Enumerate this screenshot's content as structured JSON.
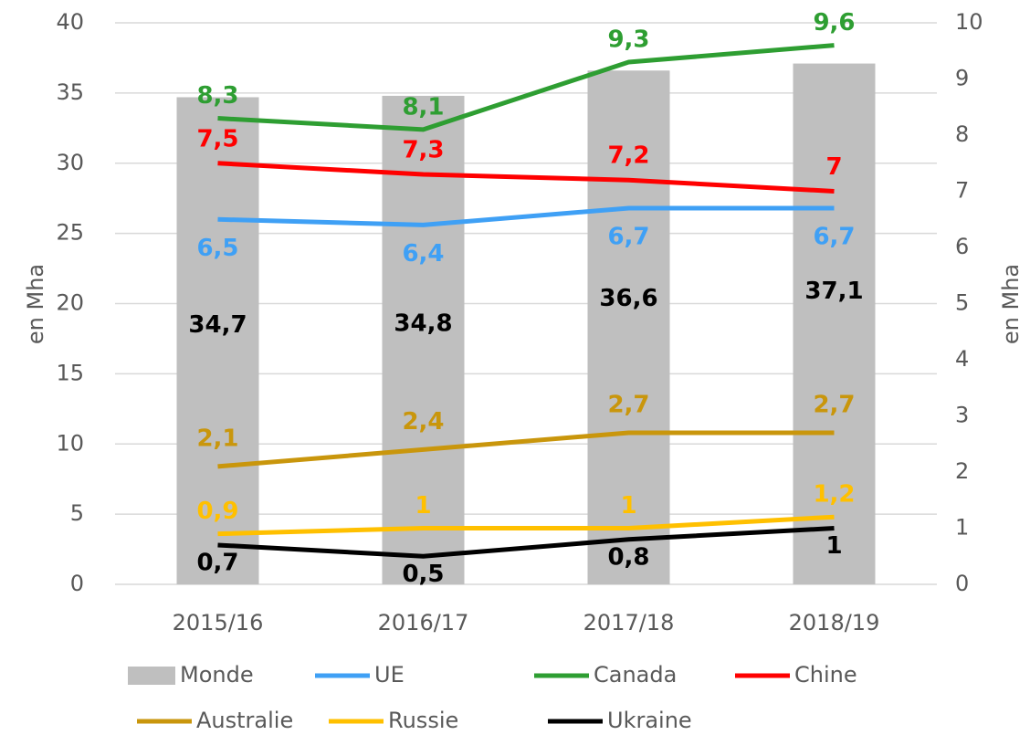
{
  "chart_data": {
    "type": "bar",
    "categories": [
      "2015/16",
      "2016/17",
      "2017/18",
      "2018/19"
    ],
    "y_label": "en Mha",
    "y2_label": "en Mha",
    "ylim": [
      0,
      40
    ],
    "yticks": [
      0,
      5,
      10,
      15,
      20,
      25,
      30,
      35,
      40
    ],
    "y2lim": [
      0,
      10
    ],
    "y2ticks": [
      0,
      1,
      2,
      3,
      4,
      5,
      6,
      7,
      8,
      9,
      10
    ],
    "grid": true,
    "legend": "bottom",
    "series": [
      {
        "name": "Monde",
        "type": "bar",
        "color": "#bfbfbf",
        "values": [
          34.7,
          34.8,
          36.6,
          37.1
        ],
        "value_labels": [
          "34,7",
          "34,8",
          "36,6",
          "37,1"
        ]
      },
      {
        "name": "UE",
        "type": "line",
        "axis": "y2",
        "color": "#3fa0f5",
        "values": [
          6.5,
          6.4,
          6.7,
          6.7
        ],
        "value_labels": [
          "6,5",
          "6,4",
          "6,7",
          "6,7"
        ]
      },
      {
        "name": "Canada",
        "type": "line",
        "axis": "y2",
        "color": "#2e9e32",
        "values": [
          8.3,
          8.1,
          9.3,
          9.6
        ],
        "value_labels": [
          "8,3",
          "8,1",
          "9,3",
          "9,6"
        ]
      },
      {
        "name": "Chine",
        "type": "line",
        "axis": "y2",
        "color": "#ff0000",
        "values": [
          7.5,
          7.3,
          7.2,
          7
        ],
        "value_labels": [
          "7,5",
          "7,3",
          "7,2",
          "7"
        ]
      },
      {
        "name": "Australie",
        "type": "line",
        "axis": "y2",
        "color": "#c9960c",
        "values": [
          2.1,
          2.4,
          2.7,
          2.7
        ],
        "value_labels": [
          "2,1",
          "2,4",
          "2,7",
          "2,7"
        ]
      },
      {
        "name": "Russie",
        "type": "line",
        "axis": "y2",
        "color": "#ffc000",
        "values": [
          0.9,
          1,
          1,
          1.2
        ],
        "value_labels": [
          "0,9",
          "1",
          "1",
          "1,2"
        ]
      },
      {
        "name": "Ukraine",
        "type": "line",
        "axis": "y2",
        "color": "#000000",
        "values": [
          0.7,
          0.5,
          0.8,
          1
        ],
        "value_labels": [
          "0,7",
          "0,5",
          "0,8",
          "1"
        ]
      }
    ]
  }
}
